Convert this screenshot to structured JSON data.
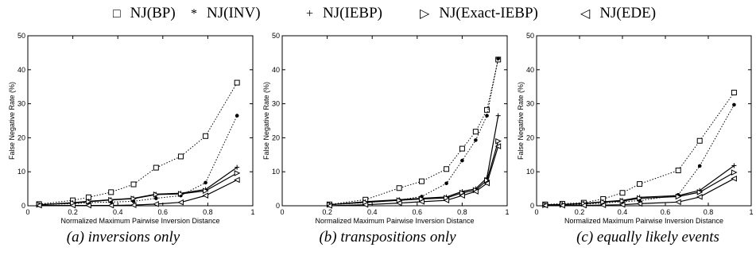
{
  "legend": [
    {
      "symbol": "□",
      "label": "NJ(BP)"
    },
    {
      "symbol": "*",
      "label": "NJ(INV)"
    },
    {
      "symbol": "+",
      "label": "NJ(IEBP)"
    },
    {
      "symbol": "▷",
      "label": "NJ(Exact-IEBP)"
    },
    {
      "symbol": "◁",
      "label": "NJ(EDE)"
    }
  ],
  "captions": [
    "(a) inversions only",
    "(b) transpositions only",
    "(c) equally likely events"
  ],
  "chart_data": [
    {
      "type": "line",
      "xlabel": "Normalized Maximum Pairwise Inversion Distance",
      "ylabel": "False Negative Rate (%)",
      "xlim": [
        0,
        1
      ],
      "ylim": [
        0,
        50
      ],
      "xticks": [
        "0",
        "0.2",
        "0.4",
        "0.6",
        "0.8",
        "1"
      ],
      "yticks": [
        "0",
        "10",
        "20",
        "30",
        "40",
        "50"
      ],
      "x": [
        0.05,
        0.2,
        0.27,
        0.37,
        0.47,
        0.57,
        0.68,
        0.79,
        0.93
      ],
      "series": [
        {
          "name": "NJ(BP)",
          "style": "dotted",
          "marker": "square",
          "values": [
            0.5,
            1.6,
            2.5,
            4.0,
            6.3,
            11.2,
            14.5,
            20.5,
            36.2
          ]
        },
        {
          "name": "NJ(INV)",
          "style": "dotted",
          "marker": "dot",
          "values": [
            0.3,
            0.6,
            0.9,
            1.1,
            1.3,
            2.2,
            3.0,
            6.8,
            26.5
          ]
        },
        {
          "name": "NJ(IEBP)",
          "style": "solid",
          "marker": "plus",
          "values": [
            0.3,
            0.9,
            1.3,
            1.8,
            2.2,
            3.4,
            3.7,
            4.8,
            11.3
          ]
        },
        {
          "name": "NJ(Exact-IEBP)",
          "style": "solid",
          "marker": "tri-right",
          "values": [
            0.3,
            0.8,
            1.2,
            1.7,
            2.1,
            3.3,
            3.5,
            4.4,
            9.6
          ]
        },
        {
          "name": "NJ(EDE)",
          "style": "solid",
          "marker": "tri-left",
          "values": [
            0.1,
            0.1,
            0.1,
            0.1,
            0.2,
            0.5,
            1.0,
            3.0,
            7.6
          ]
        }
      ]
    },
    {
      "type": "line",
      "xlabel": "Normalized Maximum Pairwise Inversion Distance",
      "ylabel": "False Negative Rate (%)",
      "xlim": [
        0,
        1
      ],
      "ylim": [
        0,
        50
      ],
      "xticks": [
        "0",
        "0.2",
        "0.4",
        "0.6",
        "0.8",
        "1"
      ],
      "yticks": [
        "0",
        "10",
        "20",
        "30",
        "40",
        "50"
      ],
      "x": [
        0.21,
        0.37,
        0.52,
        0.62,
        0.73,
        0.8,
        0.86,
        0.91,
        0.96
      ],
      "series": [
        {
          "name": "NJ(BP)",
          "style": "dotted",
          "marker": "square",
          "values": [
            0.4,
            1.8,
            5.2,
            7.2,
            10.8,
            16.8,
            21.8,
            28.2,
            43.0
          ]
        },
        {
          "name": "NJ(INV)",
          "style": "dotted",
          "marker": "dot",
          "values": [
            0.3,
            0.9,
            1.7,
            2.7,
            6.6,
            13.3,
            19.3,
            26.5,
            43.3
          ]
        },
        {
          "name": "NJ(IEBP)",
          "style": "solid",
          "marker": "plus",
          "values": [
            0.3,
            1.2,
            1.8,
            2.2,
            2.6,
            4.2,
            5.0,
            8.2,
            26.5
          ]
        },
        {
          "name": "NJ(Exact-IEBP)",
          "style": "solid",
          "marker": "tri-right",
          "values": [
            0.3,
            1.0,
            1.6,
            2.0,
            2.3,
            3.8,
            4.6,
            7.5,
            19.0
          ]
        },
        {
          "name": "NJ(EDE)",
          "style": "solid",
          "marker": "tri-left",
          "values": [
            0.0,
            0.3,
            0.8,
            1.2,
            1.6,
            3.0,
            4.2,
            6.6,
            17.5
          ]
        }
      ]
    },
    {
      "type": "line",
      "xlabel": "Normalized Maximum Pairwise Inversion Distance",
      "ylabel": "False Negative Rate (%)",
      "xlim": [
        0,
        1
      ],
      "ylim": [
        0,
        50
      ],
      "xticks": [
        "0",
        "0.2",
        "0.4",
        "0.6",
        "0.8",
        "1"
      ],
      "yticks": [
        "0",
        "10",
        "20",
        "30",
        "40",
        "50"
      ],
      "x": [
        0.04,
        0.12,
        0.22,
        0.31,
        0.4,
        0.48,
        0.66,
        0.76,
        0.92
      ],
      "series": [
        {
          "name": "NJ(BP)",
          "style": "dotted",
          "marker": "square",
          "values": [
            0.4,
            0.6,
            0.9,
            2.0,
            3.8,
            6.4,
            10.4,
            19.1,
            33.3
          ]
        },
        {
          "name": "NJ(INV)",
          "style": "dotted",
          "marker": "dot",
          "values": [
            0.2,
            0.3,
            0.4,
            0.8,
            1.2,
            1.5,
            3.2,
            11.7,
            29.7
          ]
        },
        {
          "name": "NJ(IEBP)",
          "style": "solid",
          "marker": "plus",
          "values": [
            0.3,
            0.4,
            0.7,
            1.2,
            1.6,
            2.5,
            3.0,
            4.5,
            11.8
          ]
        },
        {
          "name": "NJ(Exact-IEBP)",
          "style": "solid",
          "marker": "tri-right",
          "values": [
            0.2,
            0.3,
            0.6,
            1.1,
            1.4,
            2.2,
            2.7,
            4.0,
            9.8
          ]
        },
        {
          "name": "NJ(EDE)",
          "style": "solid",
          "marker": "tri-left",
          "values": [
            0.1,
            0.1,
            0.1,
            0.2,
            0.3,
            0.6,
            1.1,
            2.6,
            8.0
          ]
        }
      ]
    }
  ]
}
